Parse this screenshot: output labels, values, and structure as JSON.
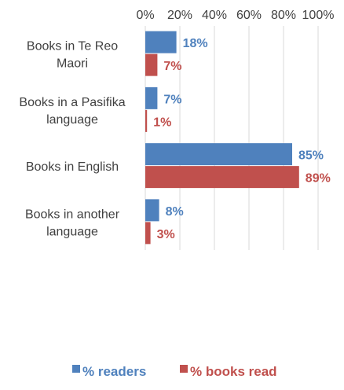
{
  "chart_data": {
    "type": "bar",
    "orientation": "horizontal",
    "title": "",
    "xlabel": "",
    "ylabel": "",
    "categories": [
      [
        "Books in Te Reo",
        "Maori"
      ],
      [
        "Books in a Pasifika",
        "language"
      ],
      [
        "Books in English"
      ],
      [
        "Books in another",
        "language"
      ]
    ],
    "series": [
      {
        "name": "% readers",
        "values": [
          18,
          7,
          85,
          8
        ],
        "labels": [
          "18%",
          "7%",
          "85%",
          "8%"
        ],
        "color": "#4f81bd"
      },
      {
        "name": "% books read",
        "values": [
          7,
          1,
          89,
          3
        ],
        "labels": [
          "7%",
          "1%",
          "89%",
          "3%"
        ],
        "color": "#c0504d"
      }
    ],
    "xlim": [
      0,
      100
    ],
    "xticks": [
      "0%",
      "20%",
      "40%",
      "60%",
      "80%",
      "100%"
    ],
    "axis_position": "top",
    "grid": true,
    "legend": "bottom"
  }
}
